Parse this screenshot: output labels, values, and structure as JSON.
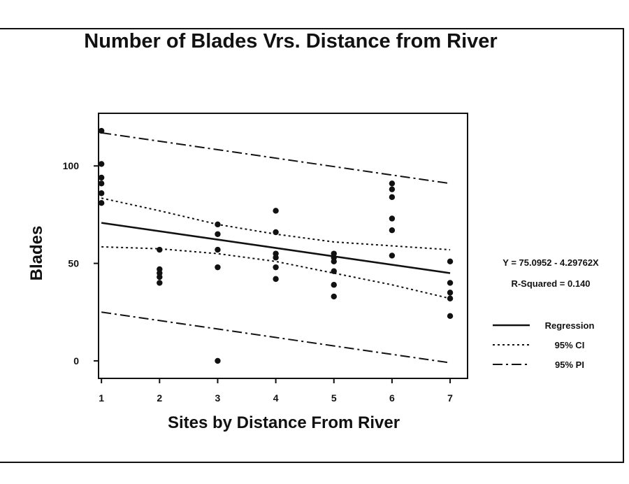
{
  "chart_data": {
    "type": "scatter",
    "title": "Number of Blades Vrs. Distance from River",
    "xlabel": "Sites by Distance From River",
    "ylabel": "Blades",
    "xlim": [
      0.95,
      7.3
    ],
    "ylim": [
      -9,
      127
    ],
    "xticks": [
      1,
      2,
      3,
      4,
      5,
      6,
      7
    ],
    "yticks": [
      0,
      50,
      100
    ],
    "points": [
      {
        "x": 1,
        "y": 118
      },
      {
        "x": 1,
        "y": 101
      },
      {
        "x": 1,
        "y": 94
      },
      {
        "x": 1,
        "y": 91
      },
      {
        "x": 1,
        "y": 86
      },
      {
        "x": 1,
        "y": 81
      },
      {
        "x": 2,
        "y": 57
      },
      {
        "x": 2,
        "y": 47
      },
      {
        "x": 2,
        "y": 45
      },
      {
        "x": 2,
        "y": 43
      },
      {
        "x": 2,
        "y": 40
      },
      {
        "x": 3,
        "y": 70
      },
      {
        "x": 3,
        "y": 65
      },
      {
        "x": 3,
        "y": 57
      },
      {
        "x": 3,
        "y": 48
      },
      {
        "x": 3,
        "y": 0
      },
      {
        "x": 4,
        "y": 77
      },
      {
        "x": 4,
        "y": 66
      },
      {
        "x": 4,
        "y": 55
      },
      {
        "x": 4,
        "y": 53
      },
      {
        "x": 4,
        "y": 48
      },
      {
        "x": 4,
        "y": 42
      },
      {
        "x": 5,
        "y": 55
      },
      {
        "x": 5,
        "y": 53
      },
      {
        "x": 5,
        "y": 51
      },
      {
        "x": 5,
        "y": 46
      },
      {
        "x": 5,
        "y": 39
      },
      {
        "x": 5,
        "y": 33
      },
      {
        "x": 6,
        "y": 91
      },
      {
        "x": 6,
        "y": 88
      },
      {
        "x": 6,
        "y": 84
      },
      {
        "x": 6,
        "y": 73
      },
      {
        "x": 6,
        "y": 67
      },
      {
        "x": 6,
        "y": 54
      },
      {
        "x": 7,
        "y": 51
      },
      {
        "x": 7,
        "y": 40
      },
      {
        "x": 7,
        "y": 35
      },
      {
        "x": 7,
        "y": 32
      },
      {
        "x": 7,
        "y": 23
      }
    ],
    "regression": {
      "intercept": 75.0952,
      "slope": -4.29762
    },
    "ci_upper": [
      [
        1,
        83.5
      ],
      [
        2,
        77
      ],
      [
        3,
        70
      ],
      [
        4,
        65
      ],
      [
        5,
        61
      ],
      [
        6,
        59
      ],
      [
        7,
        57
      ]
    ],
    "ci_lower": [
      [
        1,
        58.5
      ],
      [
        2,
        57.5
      ],
      [
        3,
        55
      ],
      [
        4,
        51
      ],
      [
        5,
        45
      ],
      [
        6,
        39
      ],
      [
        7,
        32
      ]
    ],
    "pi_upper": [
      [
        1,
        117
      ],
      [
        7,
        91
      ]
    ],
    "pi_lower": [
      [
        1,
        25
      ],
      [
        7,
        -1
      ]
    ],
    "equation_text": "Y = 75.0952 - 4.29762X",
    "rsquared_text": "R-Squared = 0.140",
    "legend": {
      "position": "right",
      "entries": [
        {
          "label": "Regression",
          "style": "solid"
        },
        {
          "label": "95% CI",
          "style": "dotted"
        },
        {
          "label": "95% PI",
          "style": "dash-dot"
        }
      ]
    },
    "grid": false,
    "color": "#111111"
  }
}
